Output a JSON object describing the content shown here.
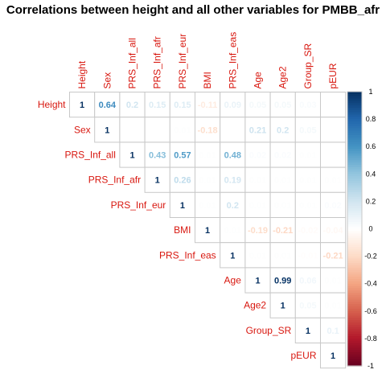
{
  "chart_data": {
    "type": "heatmap",
    "subtype": "corrplot-upper-triangle",
    "title": "Correlations between height and all other variables for PMBB_afr",
    "variables": [
      "Height",
      "Sex",
      "PRS_Inf_all",
      "PRS_Inf_afr",
      "PRS_Inf_eur",
      "BMI",
      "PRS_Inf_eas",
      "Age",
      "Age2",
      "Group_SR",
      "pEUR"
    ],
    "matrix": [
      [
        "1",
        "0.64",
        "0.2",
        "0.15",
        "0.15",
        "-0.11",
        "0.09",
        "0.05",
        "0.05",
        "0.03",
        ""
      ],
      [
        null,
        "1",
        "",
        "",
        "0.01",
        "-0.18",
        "",
        "0.21",
        "0.2",
        "0.05",
        ""
      ],
      [
        null,
        null,
        "1",
        "0.43",
        "0.57",
        "0.01",
        "0.48",
        "0.02",
        "0.02",
        "0.01",
        ""
      ],
      [
        null,
        null,
        null,
        "1",
        "0.26",
        "0.01",
        "0.19",
        "0.01",
        "0.01",
        "0.01",
        "0.01"
      ],
      [
        null,
        null,
        null,
        null,
        "1",
        "0.01",
        "0.2",
        "0.01",
        "0.01",
        "0.01",
        "0.02"
      ],
      [
        null,
        null,
        null,
        null,
        null,
        "1",
        "0.01",
        "-0.19",
        "-0.21",
        "-0.02",
        "-0.04"
      ],
      [
        null,
        null,
        null,
        null,
        null,
        null,
        "1",
        "0.01",
        "0.01",
        "-0.01",
        "-0.21"
      ],
      [
        null,
        null,
        null,
        null,
        null,
        null,
        null,
        "1",
        "0.99",
        "0.06",
        "0.01"
      ],
      [
        null,
        null,
        null,
        null,
        null,
        null,
        null,
        null,
        "1",
        "0.05",
        "0.01"
      ],
      [
        null,
        null,
        null,
        null,
        null,
        null,
        null,
        null,
        null,
        "1",
        "0.1"
      ],
      [
        null,
        null,
        null,
        null,
        null,
        null,
        null,
        null,
        null,
        null,
        "1"
      ]
    ],
    "colorbar": {
      "ticks": [
        "1",
        "0.8",
        "0.6",
        "0.4",
        "0.2",
        "0",
        "-0.2",
        "-0.4",
        "-0.6",
        "-0.8",
        "-1"
      ],
      "range": [
        -1,
        1
      ],
      "colors": [
        "#67001f",
        "#b2182b",
        "#d6604d",
        "#f4a582",
        "#fddbc7",
        "#ffffff",
        "#d1e5f0",
        "#92c5de",
        "#4393c3",
        "#2166ac",
        "#053061"
      ]
    },
    "label_color": "#d8170f"
  }
}
